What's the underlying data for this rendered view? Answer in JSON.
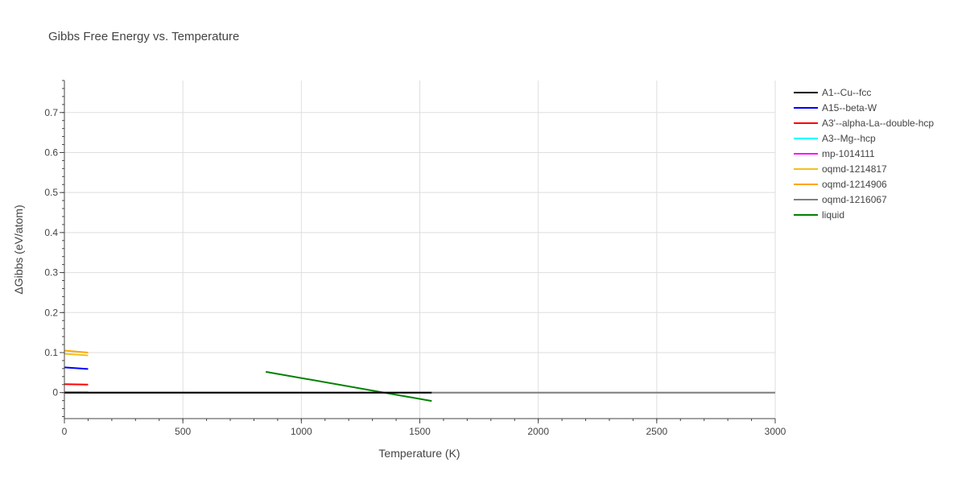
{
  "chart_data": {
    "type": "line",
    "title": "Gibbs Free Energy vs. Temperature",
    "xlabel": "Temperature (K)",
    "ylabel": "ΔGibbs (eV/atom)",
    "xlim": [
      0,
      3000
    ],
    "ylim": [
      -0.065,
      0.78
    ],
    "x_ticks": [
      0,
      500,
      1000,
      1500,
      2000,
      2500,
      3000
    ],
    "x_tick_labels": [
      "0",
      "500",
      "1000",
      "1500",
      "2000",
      "2500",
      "3000"
    ],
    "y_ticks": [
      0,
      0.1,
      0.2,
      0.3,
      0.4,
      0.5,
      0.6,
      0.7
    ],
    "y_tick_labels": [
      "0",
      "0.1",
      "0.2",
      "0.3",
      "0.4",
      "0.5",
      "0.6",
      "0.7"
    ],
    "grid": true,
    "legend_position": "right",
    "series": [
      {
        "name": "A1--Cu--fcc",
        "color": "#000000",
        "x": [
          0,
          1550
        ],
        "y": [
          0,
          0
        ]
      },
      {
        "name": "A15--beta-W",
        "color": "#0000ff",
        "x": [
          0,
          100
        ],
        "y": [
          0.063,
          0.059
        ]
      },
      {
        "name": "A3'--alpha-La--double-hcp",
        "color": "#ff0000",
        "x": [
          0,
          100
        ],
        "y": [
          0.021,
          0.02
        ]
      },
      {
        "name": "A3--Mg--hcp",
        "color": "#00ffff",
        "x": [
          0,
          100
        ],
        "y": [
          0.001,
          0.001
        ]
      },
      {
        "name": "mp-1014111",
        "color": "#ff00ff",
        "x": [
          0,
          100
        ],
        "y": [
          0.0005,
          0.0005
        ]
      },
      {
        "name": "oqmd-1214817",
        "color": "#f0c020",
        "x": [
          0,
          100
        ],
        "y": [
          0.097,
          0.093
        ]
      },
      {
        "name": "oqmd-1214906",
        "color": "#ffa500",
        "x": [
          0,
          100
        ],
        "y": [
          0.105,
          0.1
        ]
      },
      {
        "name": "oqmd-1216067",
        "color": "#808080",
        "x": [
          0,
          3000
        ],
        "y": [
          0,
          0
        ]
      },
      {
        "name": "liquid",
        "color": "#008000",
        "x": [
          850,
          1550
        ],
        "y": [
          0.052,
          -0.021
        ]
      }
    ]
  }
}
